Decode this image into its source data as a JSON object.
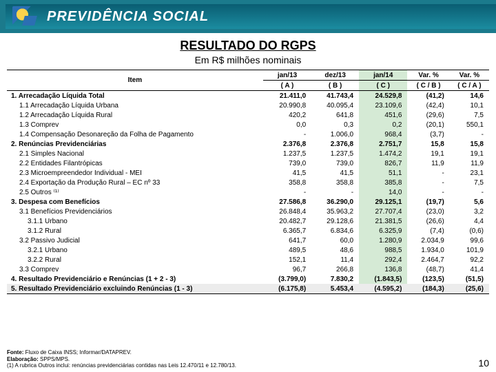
{
  "header": {
    "brand": "PREVIDÊNCIA SOCIAL"
  },
  "title": "RESULTADO DO RGPS",
  "subtitle": "Em R$ milhões nominais",
  "columns": {
    "item": "Item",
    "p1": "jan/13",
    "p2": "dez/13",
    "p3": "jan/14",
    "v1": "Var. %",
    "v2": "Var. %",
    "a": "( A )",
    "b": "( B )",
    "c": "( C )",
    "cb": "( C / B )",
    "ca": "( C / A )"
  },
  "rows": [
    {
      "label": "1. Arrecadação Líquida Total",
      "bold": true,
      "indent": 0,
      "c": [
        "21.411,0",
        "41.743,4",
        "24.529,8",
        "(41,2)",
        "14,6"
      ]
    },
    {
      "label": "1.1 Arrecadação Líquida Urbana",
      "indent": 1,
      "c": [
        "20.990,8",
        "40.095,4",
        "23.109,6",
        "(42,4)",
        "10,1"
      ]
    },
    {
      "label": "1.2 Arrecadação Líquida Rural",
      "indent": 1,
      "c": [
        "420,2",
        "641,8",
        "451,6",
        "(29,6)",
        "7,5"
      ]
    },
    {
      "label": "1.3 Comprev",
      "indent": 1,
      "c": [
        "0,0",
        "0,3",
        "0,2",
        "(20,1)",
        "550,1"
      ]
    },
    {
      "label": "1.4 Compensação Desonareção da Folha de Pagamento",
      "indent": 1,
      "c": [
        "-",
        "1.006,0",
        "968,4",
        "(3,7)",
        "-"
      ]
    },
    {
      "label": "2. Renúncias Previdenciárias",
      "bold": true,
      "indent": 0,
      "c": [
        "2.376,8",
        "2.376,8",
        "2.751,7",
        "15,8",
        "15,8"
      ]
    },
    {
      "label": "2.1 Simples Nacional",
      "indent": 1,
      "c": [
        "1.237,5",
        "1.237,5",
        "1.474,2",
        "19,1",
        "19,1"
      ]
    },
    {
      "label": "2.2 Entidades Filantrópicas",
      "indent": 1,
      "c": [
        "739,0",
        "739,0",
        "826,7",
        "11,9",
        "11,9"
      ]
    },
    {
      "label": "2.3 Microempreendedor Individual - MEI",
      "indent": 1,
      "c": [
        "41,5",
        "41,5",
        "51,1",
        "-",
        "23,1"
      ]
    },
    {
      "label": "2.4 Exportação da Produção Rural – EC nº 33",
      "indent": 1,
      "c": [
        "358,8",
        "358,8",
        "385,8",
        "-",
        "7,5"
      ]
    },
    {
      "label": "2.5 Outros ⁽¹⁾",
      "indent": 1,
      "c": [
        "-",
        "-",
        "14,0",
        "-",
        "-"
      ]
    },
    {
      "label": "3. Despesa com Benefícios",
      "bold": true,
      "indent": 0,
      "c": [
        "27.586,8",
        "36.290,0",
        "29.125,1",
        "(19,7)",
        "5,6"
      ]
    },
    {
      "label": "3.1 Benefícios Previdenciários",
      "indent": 1,
      "c": [
        "26.848,4",
        "35.963,2",
        "27.707,4",
        "(23,0)",
        "3,2"
      ]
    },
    {
      "label": "3.1.1 Urbano",
      "indent": 2,
      "c": [
        "20.482,7",
        "29.128,6",
        "21.381,5",
        "(26,6)",
        "4,4"
      ]
    },
    {
      "label": "3.1.2 Rural",
      "indent": 2,
      "c": [
        "6.365,7",
        "6.834,6",
        "6.325,9",
        "(7,4)",
        "(0,6)"
      ]
    },
    {
      "label": "3.2 Passivo Judicial",
      "indent": 1,
      "c": [
        "641,7",
        "60,0",
        "1.280,9",
        "2.034,9",
        "99,6"
      ]
    },
    {
      "label": "3.2.1 Urbano",
      "indent": 2,
      "c": [
        "489,5",
        "48,6",
        "988,5",
        "1.934,0",
        "101,9"
      ]
    },
    {
      "label": "3.2.2 Rural",
      "indent": 2,
      "c": [
        "152,1",
        "11,4",
        "292,4",
        "2.464,7",
        "92,2"
      ]
    },
    {
      "label": "3.3 Comprev",
      "indent": 1,
      "c": [
        "96,7",
        "266,8",
        "136,8",
        "(48,7)",
        "41,4"
      ]
    },
    {
      "label": "4. Resultado Previdenciário e Renúncias (1 + 2 - 3)",
      "bold": true,
      "indent": 0,
      "c": [
        "(3.799,0)",
        "7.830,2",
        "(1.843,5)",
        "(123,5)",
        "(51,5)"
      ]
    },
    {
      "label": "5. Resultado Previdenciário excluindo Renúncias (1 - 3)",
      "bold": true,
      "indent": 0,
      "grey": true,
      "c": [
        "(6.175,8)",
        "5.453,4",
        "(4.595,2)",
        "(184,3)",
        "(25,6)"
      ]
    }
  ],
  "footer": {
    "l1": "Fonte: Fluxo de Caixa INSS; Informar/DATAPREV.",
    "l2": "Elaboração: SPPS/MPS.",
    "l3": "(1) A rubrica Outros inclui: renúncias previdenciárias contidas nas Leis 12.470/11 e 12.780/13.",
    "page": "10"
  }
}
